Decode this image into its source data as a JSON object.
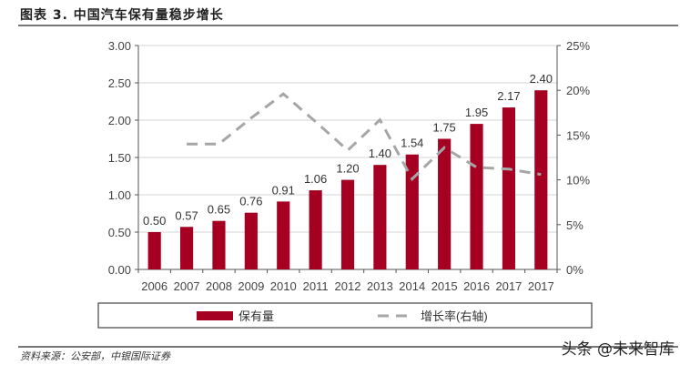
{
  "title": "图表 3. 中国汽车保有量稳步增长",
  "source": "资料来源：公安部，中银国际证券",
  "watermark": "头条 @未来智库",
  "chart_data": {
    "type": "bar",
    "categories": [
      "2006",
      "2007",
      "2008",
      "2009",
      "2010",
      "2011",
      "2012",
      "2013",
      "2014",
      "2015",
      "2016",
      "2017",
      "2017"
    ],
    "series": [
      {
        "name": "保有量",
        "type": "bar",
        "axis": "left",
        "color": "#A50021",
        "values": [
          0.5,
          0.57,
          0.65,
          0.76,
          0.91,
          1.06,
          1.2,
          1.4,
          1.54,
          1.75,
          1.95,
          2.17,
          2.4
        ],
        "labels": [
          "0.50",
          "0.57",
          "0.65",
          "0.76",
          "0.91",
          "1.06",
          "1.20",
          "1.40",
          "1.54",
          "1.75",
          "1.95",
          "2.17",
          "2.40"
        ]
      },
      {
        "name": "增长率(右轴)",
        "type": "line",
        "axis": "right",
        "color": "#A6A6A6",
        "dashed": true,
        "values": [
          null,
          14.0,
          14.0,
          16.9,
          19.6,
          16.5,
          13.3,
          16.7,
          10.1,
          13.6,
          11.4,
          11.2,
          10.6
        ]
      }
    ],
    "yleft": {
      "ticks": [
        "0.00",
        "0.50",
        "1.00",
        "1.50",
        "2.00",
        "2.50",
        "3.00"
      ],
      "lim": [
        0,
        3
      ]
    },
    "yright": {
      "ticks": [
        "0%",
        "5%",
        "10%",
        "15%",
        "20%",
        "25%"
      ],
      "lim": [
        0,
        25
      ]
    },
    "grid": true,
    "legend": "bottom"
  }
}
